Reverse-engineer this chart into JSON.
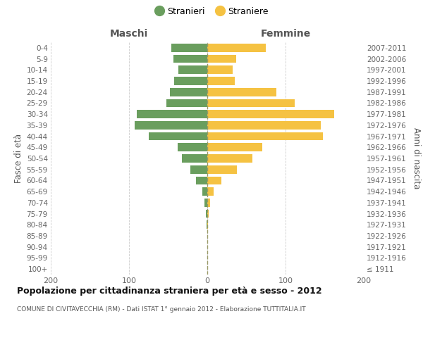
{
  "age_groups": [
    "100+",
    "95-99",
    "90-94",
    "85-89",
    "80-84",
    "75-79",
    "70-74",
    "65-69",
    "60-64",
    "55-59",
    "50-54",
    "45-49",
    "40-44",
    "35-39",
    "30-34",
    "25-29",
    "20-24",
    "15-19",
    "10-14",
    "5-9",
    "0-4"
  ],
  "birth_years": [
    "≤ 1911",
    "1912-1916",
    "1917-1921",
    "1922-1926",
    "1927-1931",
    "1932-1936",
    "1937-1941",
    "1942-1946",
    "1947-1951",
    "1952-1956",
    "1957-1961",
    "1962-1966",
    "1967-1971",
    "1972-1976",
    "1977-1981",
    "1982-1986",
    "1987-1991",
    "1992-1996",
    "1997-2001",
    "2002-2006",
    "2007-2011"
  ],
  "males": [
    0,
    0,
    0,
    0,
    1,
    2,
    4,
    6,
    14,
    22,
    32,
    38,
    75,
    93,
    90,
    52,
    48,
    42,
    37,
    43,
    46
  ],
  "females": [
    0,
    0,
    0,
    0,
    1,
    2,
    4,
    8,
    18,
    38,
    58,
    70,
    148,
    145,
    162,
    112,
    88,
    35,
    32,
    37,
    75
  ],
  "male_color": "#6a9e5e",
  "female_color": "#f5c242",
  "title": "Popolazione per cittadinanza straniera per età e sesso - 2012",
  "subtitle": "COMUNE DI CIVITAVECCHIA (RM) - Dati ISTAT 1° gennaio 2012 - Elaborazione TUTTITALIA.IT",
  "header_left": "Maschi",
  "header_right": "Femmine",
  "ylabel_left": "Fasce di età",
  "ylabel_right": "Anni di nascita",
  "legend_male": "Stranieri",
  "legend_female": "Straniere",
  "xlim": 200,
  "xticks": [
    -200,
    -100,
    0,
    100,
    200
  ],
  "grid_color": "#cccccc",
  "centerline_color": "#999966",
  "background_color": "#ffffff"
}
